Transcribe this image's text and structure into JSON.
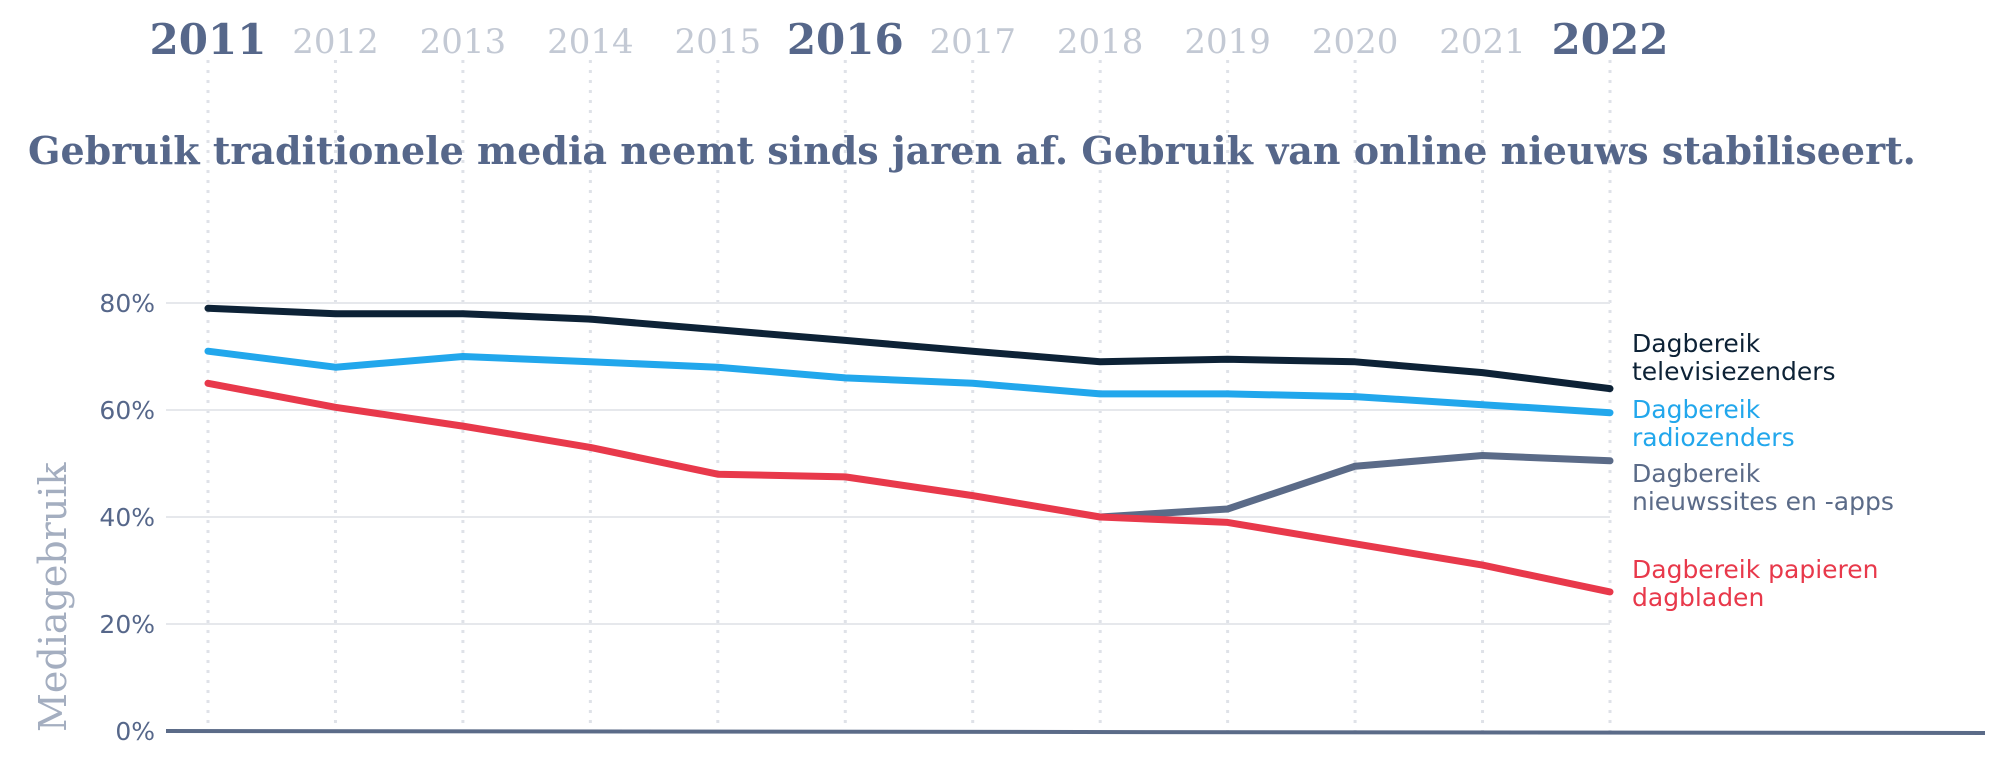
{
  "chart_data": {
    "type": "line",
    "title": "Gebruik traditionele media neemt sinds jaren af. Gebruik van online nieuws stabiliseert.",
    "xlabel": "",
    "ylabel": "Mediagebruik",
    "x": [
      "2011",
      "2012",
      "2013",
      "2014",
      "2015",
      "2016",
      "2017",
      "2018",
      "2019",
      "2020",
      "2021",
      "2022"
    ],
    "highlighted_years": [
      "2011",
      "2016",
      "2022"
    ],
    "ylim": [
      0,
      80
    ],
    "yticks": [
      {
        "value": 0,
        "label": "0%"
      },
      {
        "value": 20,
        "label": "20%"
      },
      {
        "value": 40,
        "label": "40%"
      },
      {
        "value": 60,
        "label": "60%"
      },
      {
        "value": 80,
        "label": "80%"
      }
    ],
    "grid": true,
    "series": [
      {
        "key": "tv",
        "name": "Dagbereik televisiezenders",
        "label_lines": [
          "Dagbereik",
          "televisiezenders"
        ],
        "color": "#0d2236",
        "values": [
          79,
          78,
          78,
          77,
          75,
          73,
          71,
          69,
          69.5,
          69,
          67,
          64
        ]
      },
      {
        "key": "radio",
        "name": "Dagbereik radiozenders",
        "label_lines": [
          "Dagbereik",
          "radiozenders"
        ],
        "color": "#22a7ec",
        "values": [
          71,
          68,
          70,
          69,
          68,
          66,
          65,
          63,
          63,
          62.5,
          61,
          59.5
        ]
      },
      {
        "key": "online",
        "name": "Dagbereik nieuwssites en -apps",
        "label_lines": [
          "Dagbereik",
          "nieuwssites en -apps"
        ],
        "color": "#5b6b88",
        "values": [
          null,
          null,
          null,
          null,
          null,
          null,
          null,
          40,
          41.5,
          49.5,
          51.5,
          50.5
        ]
      },
      {
        "key": "paper",
        "name": "Dagbereik papieren dagbladen",
        "label_lines": [
          "Dagbereik papieren",
          "dagbladen"
        ],
        "color": "#e8394b",
        "values": [
          65,
          60.5,
          57,
          53,
          48,
          47.5,
          44,
          40,
          39,
          35,
          31,
          26
        ]
      }
    ]
  }
}
